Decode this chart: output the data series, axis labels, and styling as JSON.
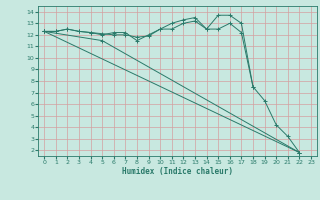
{
  "xlabel": "Humidex (Indice chaleur)",
  "bg_color": "#c8e8e0",
  "grid_color": "#d0b8b8",
  "line_color": "#2a7a6a",
  "xlim": [
    -0.5,
    23.5
  ],
  "ylim": [
    1.5,
    14.5
  ],
  "xticks": [
    0,
    1,
    2,
    3,
    4,
    5,
    6,
    7,
    8,
    9,
    10,
    11,
    12,
    13,
    14,
    15,
    16,
    17,
    18,
    19,
    20,
    21,
    22,
    23
  ],
  "yticks": [
    2,
    3,
    4,
    5,
    6,
    7,
    8,
    9,
    10,
    11,
    12,
    13,
    14
  ],
  "lines": [
    {
      "x": [
        0,
        1,
        2,
        3,
        4,
        5,
        6,
        7,
        8,
        9,
        10,
        11,
        12,
        13,
        14,
        15,
        16,
        17,
        18,
        19,
        20,
        21,
        22
      ],
      "y": [
        12.3,
        12.3,
        12.5,
        12.3,
        12.2,
        12.1,
        12.0,
        12.0,
        11.8,
        11.9,
        12.5,
        12.5,
        13.0,
        13.2,
        12.5,
        12.5,
        13.0,
        12.2,
        7.5,
        6.3,
        4.2,
        3.2,
        1.8
      ]
    },
    {
      "x": [
        0,
        1,
        2,
        3,
        4,
        5,
        6,
        7,
        8,
        9,
        10,
        11,
        12,
        13,
        14,
        15,
        16,
        17,
        18
      ],
      "y": [
        12.3,
        12.3,
        12.5,
        12.3,
        12.2,
        12.0,
        12.2,
        12.2,
        11.5,
        12.0,
        12.5,
        13.0,
        13.3,
        13.5,
        12.5,
        13.7,
        13.7,
        13.0,
        7.5
      ]
    },
    {
      "x": [
        0,
        22
      ],
      "y": [
        12.3,
        1.8
      ]
    },
    {
      "x": [
        0,
        5,
        22
      ],
      "y": [
        12.3,
        11.5,
        1.8
      ]
    }
  ]
}
